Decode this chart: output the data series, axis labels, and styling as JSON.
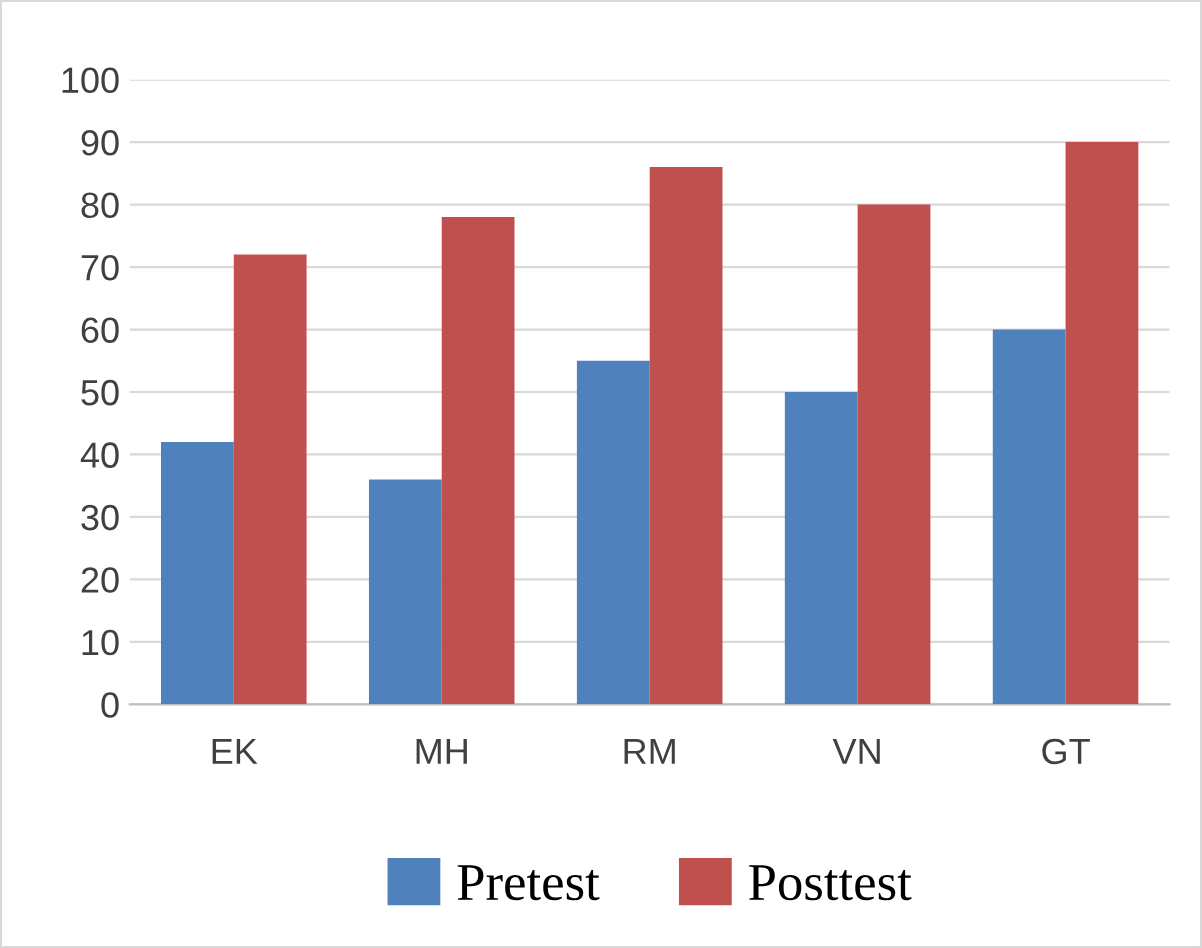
{
  "chart_data": {
    "type": "bar",
    "categories": [
      "EK",
      "MH",
      "RM",
      "VN",
      "GT"
    ],
    "series": [
      {
        "name": "Pretest",
        "color": "#4f81bd",
        "values": [
          42,
          36,
          55,
          50,
          60
        ]
      },
      {
        "name": "Posttest",
        "color": "#c0504d",
        "values": [
          72,
          78,
          86,
          80,
          90
        ]
      }
    ],
    "ylim": [
      0,
      100
    ],
    "yticks": [
      0,
      10,
      20,
      30,
      40,
      50,
      60,
      70,
      80,
      90,
      100
    ],
    "grid": "y",
    "legend": "bottom"
  }
}
